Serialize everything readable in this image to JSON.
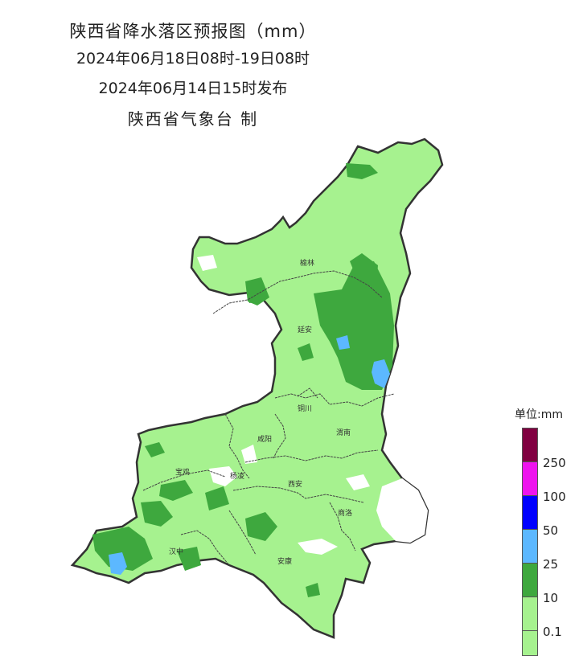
{
  "title": {
    "line1": "陕西省降水落区预报图（mm）",
    "line2": "2024年06月18日08时-19日08时",
    "line3": "2024年06月14日15时发布",
    "line4": "陕西省气象台 制"
  },
  "cities": [
    "榆林",
    "延安",
    "铜川",
    "咸阳",
    "渭南",
    "宝鸡",
    "杨凌",
    "西安",
    "商洛",
    "汉中",
    "安康"
  ],
  "legend": {
    "title": "单位:mm",
    "labels": [
      "250",
      "100",
      "50",
      "25",
      "10",
      "0.1"
    ],
    "colors": [
      "#800040",
      "#ee14ee",
      "#0000ff",
      "#5cb8ff",
      "#3ea83e",
      "#a6f28f"
    ]
  }
}
